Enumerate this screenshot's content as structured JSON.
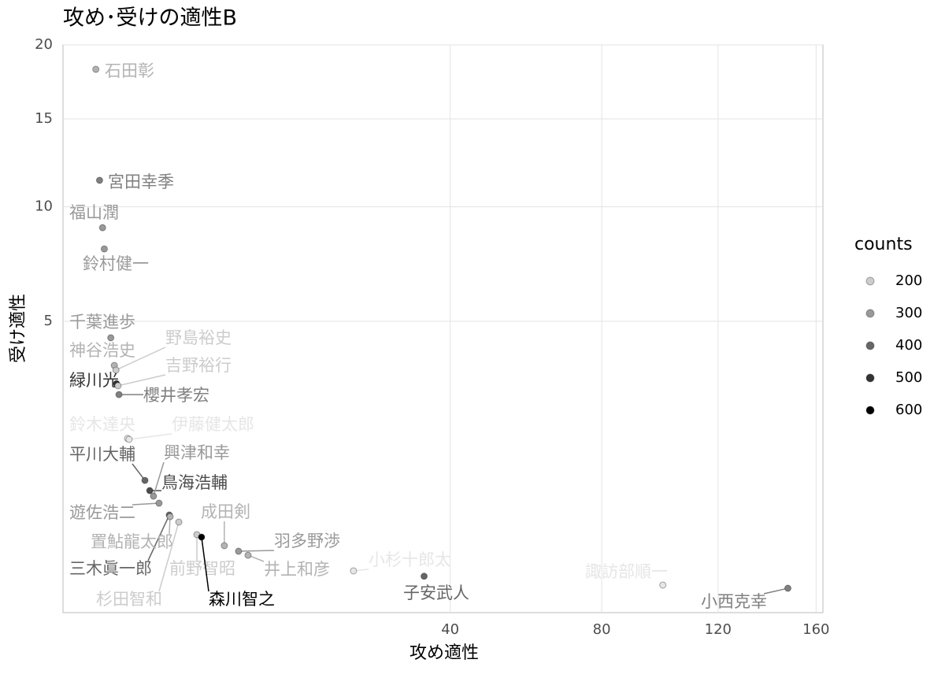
{
  "chart_data": {
    "type": "scatter",
    "title": "攻め･受けの適性B",
    "x_label": "攻め適性",
    "y_label": "受け適性",
    "x_scale": "sqrt",
    "y_scale": "sqrt",
    "xlim": [
      0,
      163
    ],
    "ylim": [
      0,
      20
    ],
    "xticks": [
      40,
      80,
      120,
      160
    ],
    "yticks": [
      5,
      10,
      15,
      20
    ],
    "grid": true,
    "legend_title": "counts",
    "legend_ticks": [
      200,
      300,
      400,
      500,
      600
    ],
    "legend_position": "right",
    "color_low": "#e6e6e6",
    "color_high": "#000000",
    "labels": [
      "石田彰",
      "宮田幸季",
      "福山潤",
      "鈴村健一",
      "千葉進歩",
      "神谷浩史",
      "緑川光",
      "櫻井孝宏",
      "野島裕史",
      "吉野裕行",
      "鈴木達央",
      "伊藤健太郎",
      "平川大輔",
      "鳥海浩輔",
      "興津和幸",
      "遊佐浩二",
      "三木眞一郎",
      "置鮎龍太郎",
      "杉田智和",
      "前野智昭",
      "森川智之",
      "成田剣",
      "羽多野渉",
      "井上和彦",
      "小杉十郎太",
      "子安武人",
      "諏訪部順一",
      "小西克幸"
    ],
    "x": [
      0.04,
      0.07,
      0.1,
      0.12,
      0.21,
      0.27,
      0.31,
      0.36,
      0.3,
      0.34,
      0.56,
      0.6,
      1.1,
      1.28,
      1.43,
      1.67,
      2.16,
      2.2,
      2.67,
      3.79,
      4.11,
      5.86,
      7.11,
      8.01,
      21.65,
      34.5,
      100,
      147.9
    ],
    "y": [
      18.27,
      11.4,
      8.96,
      7.96,
      4.42,
      3.53,
      3.0,
      2.7,
      3.39,
      2.94,
      1.66,
      1.64,
      0.9,
      0.75,
      0.675,
      0.584,
      0.447,
      0.43,
      0.374,
      0.26,
      0.24,
      0.177,
      0.141,
      0.118,
      0.047,
      0.03,
      0.0104,
      0.0058
    ],
    "counts": [
      250,
      350,
      300,
      300,
      300,
      250,
      500,
      350,
      200,
      200,
      150,
      150,
      400,
      450,
      300,
      300,
      400,
      250,
      200,
      200,
      600,
      250,
      300,
      250,
      150,
      400,
      150,
      350
    ]
  }
}
